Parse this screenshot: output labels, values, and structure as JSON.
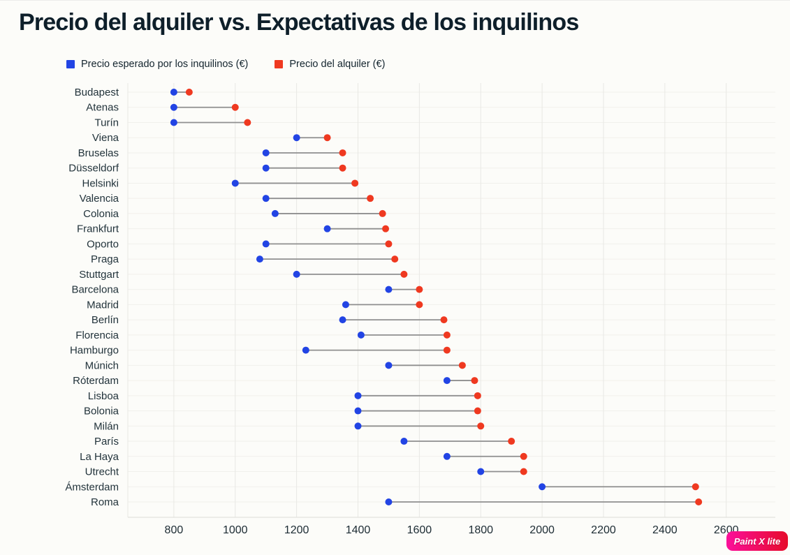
{
  "title": "Precio del alquiler vs. Expectativas de los inquilinos",
  "watermark": {
    "label": "Paint X lite"
  },
  "colors": {
    "expected_blue": "#2244e4",
    "rent_red": "#ef3920",
    "connector_gray": "#8f8f8f",
    "text_dark": "#13242e",
    "watermark_pink": "#fb109b",
    "watermark_red": "#e60b2a"
  },
  "chart_data": {
    "type": "dumbbell",
    "title": "Precio del alquiler vs. Expectativas de los inquilinos",
    "categories": [
      "Budapest",
      "Atenas",
      "Turín",
      "Viena",
      "Bruselas",
      "Düsseldorf",
      "Helsinki",
      "Valencia",
      "Colonia",
      "Frankfurt",
      "Oporto",
      "Praga",
      "Stuttgart",
      "Barcelona",
      "Madrid",
      "Berlín",
      "Florencia",
      "Hamburgo",
      "Múnich",
      "Róterdam",
      "Lisboa",
      "Bolonia",
      "Milán",
      "París",
      "La Haya",
      "Utrecht",
      "Ámsterdam",
      "Roma"
    ],
    "series": [
      {
        "name": "Precio esperado por los inquilinos (€)",
        "color": "#2244e4",
        "values": [
          800,
          800,
          800,
          1200,
          1100,
          1100,
          1000,
          1100,
          1130,
          1300,
          1100,
          1080,
          1200,
          1500,
          1360,
          1350,
          1410,
          1230,
          1500,
          1690,
          1400,
          1400,
          1400,
          1550,
          1690,
          1800,
          2000,
          1500
        ]
      },
      {
        "name": "Precio del alquiler (€)",
        "color": "#ef3920",
        "values": [
          850,
          1000,
          1040,
          1300,
          1350,
          1350,
          1390,
          1440,
          1480,
          1490,
          1500,
          1520,
          1550,
          1600,
          1600,
          1680,
          1690,
          1690,
          1740,
          1780,
          1790,
          1790,
          1800,
          1900,
          1940,
          1940,
          2500,
          2510
        ]
      }
    ],
    "x_ticks": [
      800,
      1000,
      1200,
      1400,
      1600,
      1800,
      2000,
      2200,
      2400,
      2600
    ],
    "xlim": [
      650,
      2760
    ],
    "xlabel": "",
    "ylabel": "",
    "grid": true,
    "legend_position": "top",
    "connector_color": "#8f8f8f"
  }
}
